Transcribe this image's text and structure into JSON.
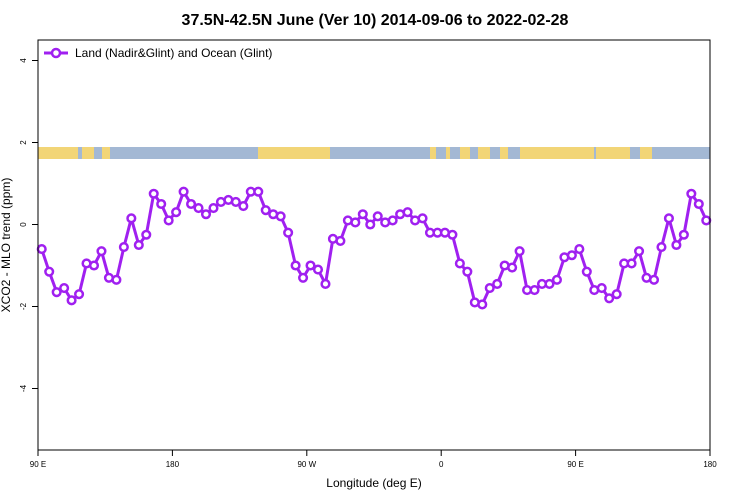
{
  "chart_data": {
    "type": "line",
    "title": "37.5N-42.5N June (Ver 10)   2014-09-06 to 2022-02-28",
    "xlabel": "Longitude (deg E)",
    "ylabel": "XCO2 - MLO trend (ppm)",
    "xlim": [
      90,
      540
    ],
    "ylim": [
      -5.5,
      4.5
    ],
    "x_ticks": [
      {
        "value": 90,
        "label": "90 E"
      },
      {
        "value": 180,
        "label": "180"
      },
      {
        "value": 270,
        "label": "90 W"
      },
      {
        "value": 360,
        "label": "0"
      },
      {
        "value": 450,
        "label": "90 E"
      },
      {
        "value": 540,
        "label": "180"
      }
    ],
    "y_ticks": [
      -4,
      -2,
      0,
      2,
      4
    ],
    "grid": false,
    "legend_position": "top-left",
    "series": [
      {
        "name": "Land (Nadir&Glint) and Ocean (Glint)",
        "color": "#a020f0",
        "x": [
          92.5,
          97.5,
          102.5,
          107.5,
          112.5,
          117.5,
          122.5,
          127.5,
          132.5,
          137.5,
          142.5,
          147.5,
          152.5,
          157.5,
          162.5,
          167.5,
          172.5,
          177.5,
          182.5,
          187.5,
          192.5,
          197.5,
          202.5,
          207.5,
          212.5,
          217.5,
          222.5,
          227.5,
          232.5,
          237.5,
          242.5,
          247.5,
          252.5,
          257.5,
          262.5,
          267.5,
          272.5,
          277.5,
          282.5,
          287.5,
          292.5,
          297.5,
          302.5,
          307.5,
          312.5,
          317.5,
          322.5,
          327.5,
          332.5,
          337.5,
          342.5,
          347.5,
          352.5,
          357.5,
          362.5,
          367.5,
          372.5,
          377.5,
          382.5,
          387.5,
          392.5,
          397.5,
          402.5,
          407.5,
          412.5,
          417.5,
          422.5,
          427.5,
          432.5,
          437.5,
          442.5,
          447.5,
          452.5,
          457.5,
          462.5,
          467.5,
          472.5,
          477.5,
          482.5,
          487.5,
          492.5,
          497.5,
          502.5,
          507.5,
          512.5,
          517.5,
          522.5,
          527.5,
          532.5,
          537.5
        ],
        "y": [
          -0.6,
          -1.15,
          -1.65,
          -1.55,
          -1.85,
          -1.7,
          -0.95,
          -1.0,
          -0.65,
          -1.3,
          -1.35,
          -0.55,
          0.15,
          -0.5,
          -0.25,
          0.75,
          0.5,
          0.1,
          0.3,
          0.8,
          0.5,
          0.4,
          0.25,
          0.4,
          0.55,
          0.6,
          0.55,
          0.45,
          0.8,
          0.8,
          0.35,
          0.25,
          0.2,
          -0.2,
          -1.0,
          -1.3,
          -1.0,
          -1.1,
          -1.45,
          -0.35,
          -0.4,
          0.1,
          0.05,
          0.25,
          0.0,
          0.2,
          0.05,
          0.1,
          0.25,
          0.3,
          0.1,
          0.15,
          -0.2,
          -0.2,
          -0.2,
          -0.25,
          -0.95,
          -1.15,
          -1.9,
          -1.95,
          -1.55,
          -1.45,
          -1.0,
          -1.05,
          -0.65,
          -1.6,
          -1.6,
          -1.45,
          -1.45,
          -1.35,
          -0.8,
          -0.75,
          -0.6,
          -1.15,
          -1.6,
          -1.55,
          -1.8,
          -1.7,
          -0.95,
          -0.95,
          -0.65,
          -1.3,
          -1.35,
          -0.55,
          0.15,
          -0.5,
          -0.25,
          0.75,
          0.5,
          0.1
        ]
      }
    ],
    "background_map": {
      "type": "longitude-strip",
      "ocean_color": "#a3b8d4",
      "land_color": "#f2d577"
    }
  }
}
